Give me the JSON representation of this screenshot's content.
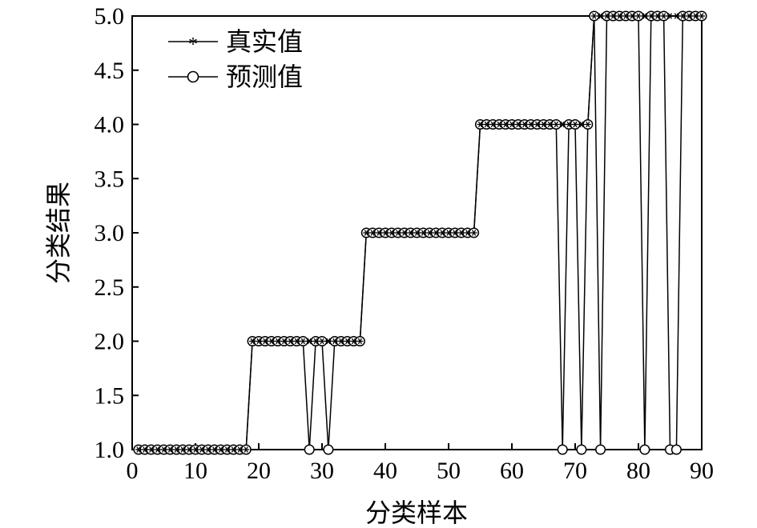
{
  "chart_data": {
    "type": "line",
    "xlabel": "分类样本",
    "ylabel": "分类结果",
    "xlim": [
      0,
      90
    ],
    "ylim": [
      1.0,
      5.0
    ],
    "x_ticks": [
      0,
      10,
      20,
      30,
      40,
      50,
      60,
      70,
      80,
      90
    ],
    "y_ticks": [
      1.0,
      1.5,
      2.0,
      2.5,
      3.0,
      3.5,
      4.0,
      4.5,
      5.0
    ],
    "x_tick_labels": [
      "0",
      "10",
      "20",
      "30",
      "40",
      "50",
      "60",
      "70",
      "80",
      "90"
    ],
    "y_tick_labels": [
      "1.0",
      "1.5",
      "2.0",
      "2.5",
      "3.0",
      "3.5",
      "4.0",
      "4.5",
      "5.0"
    ],
    "legend_position": "top-left",
    "grid": false,
    "x": [
      1,
      2,
      3,
      4,
      5,
      6,
      7,
      8,
      9,
      10,
      11,
      12,
      13,
      14,
      15,
      16,
      17,
      18,
      19,
      20,
      21,
      22,
      23,
      24,
      25,
      26,
      27,
      28,
      29,
      30,
      31,
      32,
      33,
      34,
      35,
      36,
      37,
      38,
      39,
      40,
      41,
      42,
      43,
      44,
      45,
      46,
      47,
      48,
      49,
      50,
      51,
      52,
      53,
      54,
      55,
      56,
      57,
      58,
      59,
      60,
      61,
      62,
      63,
      64,
      65,
      66,
      67,
      68,
      69,
      70,
      71,
      72,
      73,
      74,
      75,
      76,
      77,
      78,
      79,
      80,
      81,
      82,
      83,
      84,
      85,
      86,
      87,
      88,
      89,
      90
    ],
    "series": [
      {
        "name": "真实值",
        "marker": "star",
        "values": [
          1,
          1,
          1,
          1,
          1,
          1,
          1,
          1,
          1,
          1,
          1,
          1,
          1,
          1,
          1,
          1,
          1,
          1,
          2,
          2,
          2,
          2,
          2,
          2,
          2,
          2,
          2,
          2,
          2,
          2,
          2,
          2,
          2,
          2,
          2,
          2,
          3,
          3,
          3,
          3,
          3,
          3,
          3,
          3,
          3,
          3,
          3,
          3,
          3,
          3,
          3,
          3,
          3,
          3,
          4,
          4,
          4,
          4,
          4,
          4,
          4,
          4,
          4,
          4,
          4,
          4,
          4,
          4,
          4,
          4,
          4,
          4,
          5,
          5,
          5,
          5,
          5,
          5,
          5,
          5,
          5,
          5,
          5,
          5,
          5,
          5,
          5,
          5,
          5,
          5
        ]
      },
      {
        "name": "预测值",
        "marker": "circle",
        "values": [
          1,
          1,
          1,
          1,
          1,
          1,
          1,
          1,
          1,
          1,
          1,
          1,
          1,
          1,
          1,
          1,
          1,
          1,
          2,
          2,
          2,
          2,
          2,
          2,
          2,
          2,
          2,
          1,
          2,
          2,
          1,
          2,
          2,
          2,
          2,
          2,
          3,
          3,
          3,
          3,
          3,
          3,
          3,
          3,
          3,
          3,
          3,
          3,
          3,
          3,
          3,
          3,
          3,
          3,
          4,
          4,
          4,
          4,
          4,
          4,
          4,
          4,
          4,
          4,
          4,
          4,
          4,
          1,
          4,
          4,
          1,
          4,
          5,
          1,
          5,
          5,
          5,
          5,
          5,
          5,
          1,
          5,
          5,
          5,
          1,
          1,
          5,
          5,
          5,
          5
        ]
      }
    ]
  }
}
